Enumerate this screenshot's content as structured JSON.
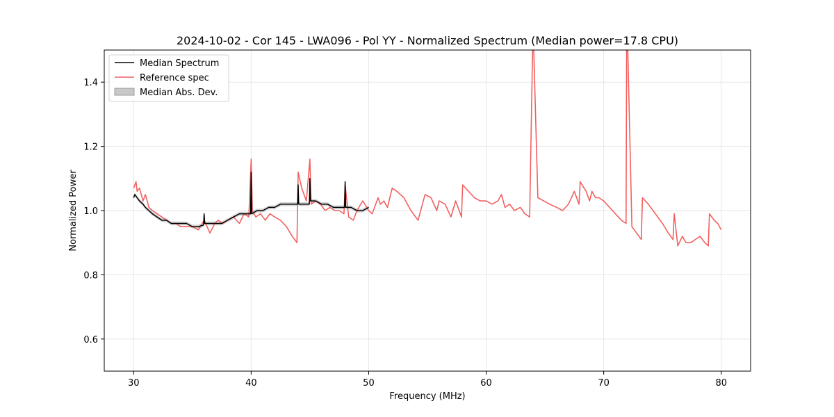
{
  "chart_data": {
    "type": "line",
    "title": "2024-10-02 - Cor 145 - LWA096 - Pol YY - Normalized Spectrum (Median power=17.8 CPU)",
    "xlabel": "Frequency (MHz)",
    "ylabel": "Normalized Power",
    "xlim": [
      27.5,
      82.5
    ],
    "ylim": [
      0.5,
      1.5
    ],
    "xticks": [
      30,
      40,
      50,
      60,
      70,
      80
    ],
    "xtick_labels": [
      "30",
      "40",
      "50",
      "60",
      "70",
      "80"
    ],
    "yticks": [
      0.6,
      0.8,
      1.0,
      1.2,
      1.4
    ],
    "ytick_labels": [
      "0.6",
      "0.8",
      "1.0",
      "1.2",
      "1.4"
    ],
    "grid": true,
    "legend_position": "top-left",
    "legend": [
      "Median Spectrum",
      "Reference spec",
      "Median Abs. Dev."
    ],
    "colors": {
      "median": "#000000",
      "reference": "#f26060",
      "mad": "#c8c8c8",
      "mad_edge": "#9a9a9a"
    },
    "series": [
      {
        "name": "Reference spec",
        "x": [
          30.0,
          30.2,
          30.3,
          30.5,
          30.8,
          31.0,
          31.3,
          31.6,
          32.0,
          32.4,
          32.8,
          33.2,
          33.6,
          34.0,
          34.5,
          35.0,
          35.5,
          36.0,
          36.5,
          36.9,
          37.2,
          37.6,
          38.0,
          38.5,
          39.0,
          39.4,
          39.8,
          40.0,
          40.1,
          40.4,
          40.8,
          41.2,
          41.6,
          42.0,
          42.5,
          43.0,
          43.5,
          43.9,
          44.0,
          44.3,
          44.7,
          45.0,
          45.1,
          45.5,
          45.9,
          46.3,
          46.7,
          47.1,
          47.5,
          47.9,
          48.0,
          48.3,
          48.7,
          49.0,
          49.5,
          50.0,
          50.3,
          50.8,
          51.0,
          51.3,
          51.6,
          52.0,
          52.4,
          53.0,
          53.6,
          54.2,
          54.8,
          55.3,
          55.8,
          56.0,
          56.5,
          57.0,
          57.4,
          57.9,
          58.0,
          58.5,
          59.0,
          59.5,
          60.0,
          60.5,
          61.0,
          61.3,
          61.6,
          62.0,
          62.4,
          62.9,
          63.3,
          63.7,
          63.95,
          64.0,
          64.05,
          64.4,
          64.9,
          65.4,
          66.0,
          66.5,
          67.0,
          67.5,
          67.9,
          68.0,
          68.5,
          68.8,
          69.0,
          69.3,
          69.6,
          70.0,
          70.5,
          71.0,
          71.5,
          71.9,
          71.95,
          72.0,
          72.05,
          72.4,
          72.8,
          73.2,
          73.3,
          73.8,
          74.4,
          75.0,
          75.5,
          75.9,
          76.0,
          76.3,
          76.7,
          77.0,
          77.4,
          77.8,
          78.2,
          78.6,
          78.9,
          79.0,
          79.4,
          79.7,
          80.0
        ],
        "y": [
          1.07,
          1.09,
          1.06,
          1.07,
          1.03,
          1.05,
          1.01,
          1.0,
          0.99,
          0.98,
          0.97,
          0.96,
          0.96,
          0.95,
          0.95,
          0.95,
          0.94,
          0.97,
          0.93,
          0.96,
          0.97,
          0.96,
          0.97,
          0.98,
          0.96,
          0.99,
          0.98,
          1.16,
          1.0,
          0.98,
          0.99,
          0.97,
          0.99,
          0.98,
          0.97,
          0.95,
          0.92,
          0.9,
          1.12,
          1.07,
          1.03,
          1.16,
          1.02,
          1.03,
          1.02,
          1.0,
          1.01,
          1.0,
          1.0,
          0.99,
          1.08,
          0.98,
          0.97,
          1.0,
          1.03,
          1.0,
          0.99,
          1.04,
          1.02,
          1.03,
          1.01,
          1.07,
          1.06,
          1.04,
          1.0,
          0.97,
          1.05,
          1.04,
          1.0,
          1.03,
          1.02,
          0.98,
          1.03,
          0.98,
          1.08,
          1.06,
          1.04,
          1.03,
          1.03,
          1.02,
          1.03,
          1.05,
          1.01,
          1.02,
          1.0,
          1.01,
          0.99,
          0.98,
          1.5,
          1.5,
          1.5,
          1.04,
          1.03,
          1.02,
          1.01,
          1.0,
          1.02,
          1.06,
          1.02,
          1.09,
          1.06,
          1.03,
          1.06,
          1.04,
          1.04,
          1.03,
          1.01,
          0.99,
          0.97,
          0.96,
          1.5,
          1.5,
          1.5,
          0.95,
          0.93,
          0.91,
          1.04,
          1.02,
          0.99,
          0.96,
          0.93,
          0.91,
          0.99,
          0.89,
          0.92,
          0.9,
          0.9,
          0.91,
          0.92,
          0.9,
          0.89,
          0.99,
          0.97,
          0.96,
          0.94
        ]
      },
      {
        "name": "Median Spectrum",
        "x": [
          30.0,
          30.1,
          30.3,
          30.5,
          30.8,
          31.0,
          31.3,
          31.6,
          32.0,
          32.4,
          32.8,
          33.2,
          33.6,
          34.0,
          34.5,
          35.0,
          35.5,
          35.95,
          36.0,
          36.05,
          36.5,
          37.0,
          37.5,
          38.0,
          38.5,
          39.0,
          39.5,
          39.95,
          40.0,
          40.05,
          40.5,
          41.0,
          41.5,
          42.0,
          42.5,
          43.0,
          43.5,
          43.95,
          44.0,
          44.05,
          44.5,
          44.95,
          45.0,
          45.05,
          45.5,
          46.0,
          46.5,
          47.0,
          47.5,
          47.95,
          48.0,
          48.05,
          48.5,
          49.0,
          49.5,
          50.0
        ],
        "y": [
          1.04,
          1.05,
          1.04,
          1.03,
          1.02,
          1.01,
          1.0,
          0.99,
          0.98,
          0.97,
          0.97,
          0.96,
          0.96,
          0.96,
          0.96,
          0.95,
          0.95,
          0.955,
          0.99,
          0.96,
          0.96,
          0.96,
          0.96,
          0.97,
          0.98,
          0.99,
          0.99,
          0.99,
          1.12,
          0.99,
          1.0,
          1.0,
          1.01,
          1.01,
          1.02,
          1.02,
          1.02,
          1.02,
          1.08,
          1.02,
          1.02,
          1.02,
          1.1,
          1.03,
          1.03,
          1.02,
          1.02,
          1.01,
          1.01,
          1.01,
          1.09,
          1.01,
          1.01,
          1.0,
          1.0,
          1.01
        ]
      }
    ]
  }
}
